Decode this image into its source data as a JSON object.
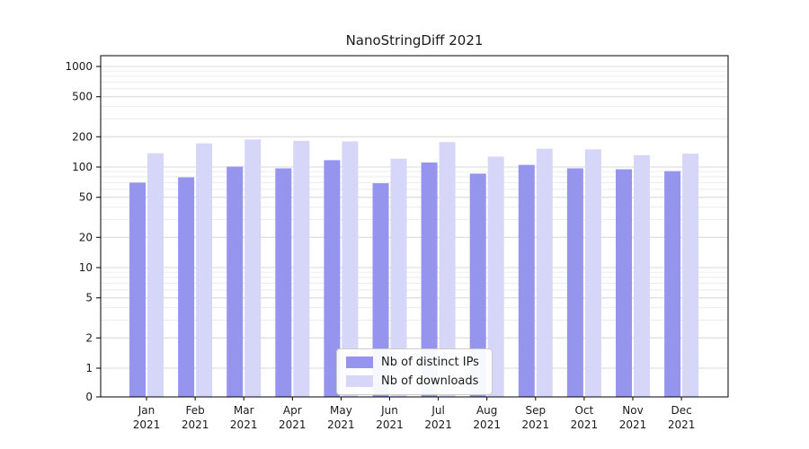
{
  "chart_data": {
    "type": "bar",
    "title": "NanoStringDiff 2021",
    "year": "2021",
    "months": [
      "Jan",
      "Feb",
      "Mar",
      "Apr",
      "May",
      "Jun",
      "Jul",
      "Aug",
      "Sep",
      "Oct",
      "Nov",
      "Dec"
    ],
    "series": [
      {
        "name": "Nb of distinct IPs",
        "color": "#9595ee",
        "values": [
          70,
          79,
          101,
          97,
          117,
          69,
          111,
          86,
          105,
          97,
          95,
          91
        ]
      },
      {
        "name": "Nb of downloads",
        "color": "#d6d6f8",
        "values": [
          137,
          172,
          188,
          182,
          180,
          121,
          177,
          127,
          152,
          150,
          131,
          136
        ]
      }
    ],
    "yscale": "log",
    "ylim": [
      0,
      1000
    ],
    "yticks": [
      0,
      1,
      2,
      5,
      10,
      20,
      50,
      100,
      200,
      500,
      1000
    ],
    "grid": true,
    "legend_position": "bottom-center"
  },
  "colors": {
    "axis": "#000000",
    "text": "#1a1a1a",
    "grid_major": "#dadada",
    "grid_minor": "#ececec",
    "background": "#ffffff"
  }
}
